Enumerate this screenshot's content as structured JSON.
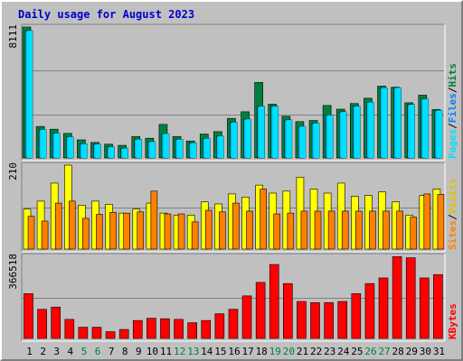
{
  "chart_data": {
    "type": "bar",
    "title": "Daily usage for August 2023",
    "colors": {
      "title": "#0000cc",
      "hits": "#008040",
      "files": "#00c0ff",
      "pages": "#00e0ff",
      "visits": "#ffff00",
      "sites": "#ff8000",
      "kbytes": "#ff0000",
      "weekday": "#000000",
      "weekend": "#008040",
      "separator": "#000000",
      "background": "#c0c0c0",
      "grid": "#808080"
    },
    "categories": [
      "1",
      "2",
      "3",
      "4",
      "5",
      "6",
      "7",
      "8",
      "9",
      "10",
      "11",
      "12",
      "13",
      "14",
      "15",
      "16",
      "17",
      "18",
      "19",
      "20",
      "21",
      "22",
      "23",
      "24",
      "25",
      "26",
      "27",
      "28",
      "29",
      "30",
      "31"
    ],
    "weekend_days": [
      "5",
      "6",
      "12",
      "13",
      "19",
      "20",
      "26",
      "27"
    ],
    "panels": [
      {
        "id": "hits-files-pages",
        "max_label": "8111",
        "ylim": [
          0,
          8111
        ],
        "labels": [
          {
            "text": "Pages",
            "color": "#00e0ff"
          },
          {
            "text": "/",
            "color": "#000000"
          },
          {
            "text": "Files",
            "color": "#0080ff"
          },
          {
            "text": "/",
            "color": "#000000"
          },
          {
            "text": "Hits",
            "color": "#008040"
          }
        ],
        "series": [
          {
            "name": "Hits",
            "values": [
              8111,
              1950,
              1780,
              1520,
              1120,
              960,
              850,
              780,
              1330,
              1220,
              2080,
              1330,
              1050,
              1480,
              1630,
              2450,
              2860,
              4680,
              3330,
              2580,
              2250,
              2320,
              3250,
              3020,
              3370,
              3700,
              4450,
              4380,
              3420,
              3890,
              3000
            ]
          },
          {
            "name": "Files",
            "values": [
              7880,
              1750,
              1530,
              1300,
              870,
              850,
              680,
              600,
              1150,
              1000,
              1500,
              1150,
              930,
              1200,
              1350,
              2200,
              2400,
              3200,
              3200,
              2350,
              1950,
              2150,
              2650,
              2850,
              3200,
              3450,
              4350,
              4350,
              3300,
              3650,
              2950
            ]
          },
          {
            "name": "Pages",
            "values": [
              7880,
              1750,
              1530,
              1300,
              870,
              850,
              680,
              600,
              1150,
              1000,
              1500,
              1150,
              930,
              1200,
              1350,
              2200,
              2400,
              3200,
              3200,
              2350,
              1950,
              2150,
              2650,
              2850,
              3200,
              3450,
              4350,
              4350,
              3300,
              3650,
              2950
            ]
          }
        ]
      },
      {
        "id": "visits-sites",
        "max_label": "210",
        "ylim": [
          0,
          210
        ],
        "labels": [
          {
            "text": "Sites",
            "color": "#ff8000"
          },
          {
            "text": "/",
            "color": "#000000"
          },
          {
            "text": "Visits",
            "color": "#e0c000"
          }
        ],
        "series": [
          {
            "name": "Visits",
            "values": [
              100,
              120,
              165,
              210,
              110,
              120,
              112,
              90,
              100,
              115,
              90,
              85,
              85,
              118,
              113,
              138,
              130,
              160,
              140,
              145,
              180,
              150,
              140,
              165,
              132,
              134,
              143,
              118,
              85,
              134,
              150
            ]
          },
          {
            "name": "Sites",
            "values": [
              82,
              70,
              115,
              120,
              77,
              87,
              92,
              90,
              93,
              145,
              88,
              88,
              68,
              97,
              93,
              115,
              95,
              150,
              88,
              90,
              95,
              95,
              95,
              95,
              95,
              95,
              95,
              95,
              80,
              138,
              137
            ]
          }
        ]
      },
      {
        "id": "kbytes",
        "max_label": "366518",
        "ylim": [
          0,
          366518
        ],
        "labels": [
          {
            "text": "KBytes",
            "color": "#ff0000"
          }
        ],
        "series": [
          {
            "name": "KBytes",
            "values": [
              200000,
              130000,
              140000,
              85000,
              50000,
              50000,
              30000,
              40000,
              80000,
              90000,
              88000,
              85000,
              70000,
              80000,
              110000,
              130000,
              190000,
              250000,
              330000,
              245000,
              165000,
              160000,
              160000,
              165000,
              200000,
              245000,
              270000,
              365000,
              360000,
              270000,
              285000
            ]
          }
        ]
      }
    ]
  }
}
